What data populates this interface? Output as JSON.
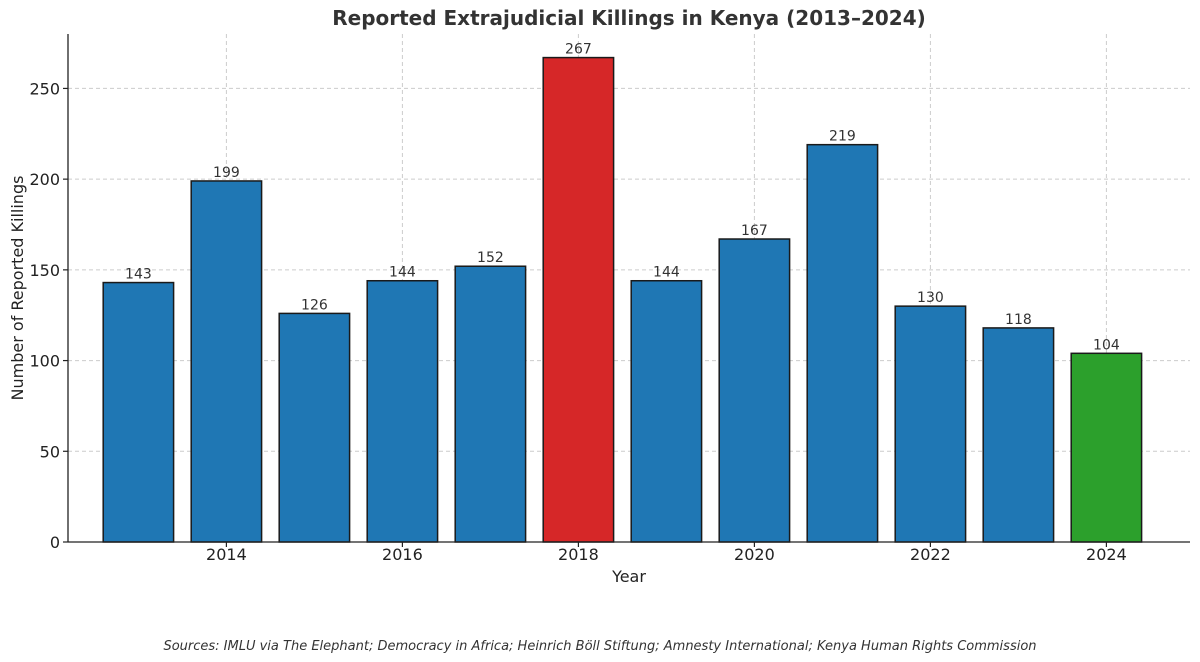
{
  "chart_data": {
    "type": "bar",
    "title": "Reported Extrajudicial Killings in Kenya (2013–2024)",
    "xlabel": "Year",
    "ylabel": "Number of Reported Killings",
    "source": "Sources: IMLU via The Elephant; Democracy in Africa; Heinrich Böll Stiftung; Amnesty International; Kenya Human Rights Commission",
    "categories": [
      2013,
      2014,
      2015,
      2016,
      2017,
      2018,
      2019,
      2020,
      2021,
      2022,
      2023,
      2024
    ],
    "values": [
      143,
      199,
      126,
      144,
      152,
      267,
      144,
      167,
      219,
      130,
      118,
      104
    ],
    "bar_colors": [
      "#1f77b4",
      "#1f77b4",
      "#1f77b4",
      "#1f77b4",
      "#1f77b4",
      "#d62728",
      "#1f77b4",
      "#1f77b4",
      "#1f77b4",
      "#1f77b4",
      "#1f77b4",
      "#2ca02c"
    ],
    "x_ticks": [
      2014,
      2016,
      2018,
      2020,
      2022,
      2024
    ],
    "y_ticks": [
      0,
      50,
      100,
      150,
      200,
      250
    ],
    "ylim": [
      0,
      280
    ],
    "xlim": [
      2012.2,
      2024.95
    ],
    "grid": true
  }
}
